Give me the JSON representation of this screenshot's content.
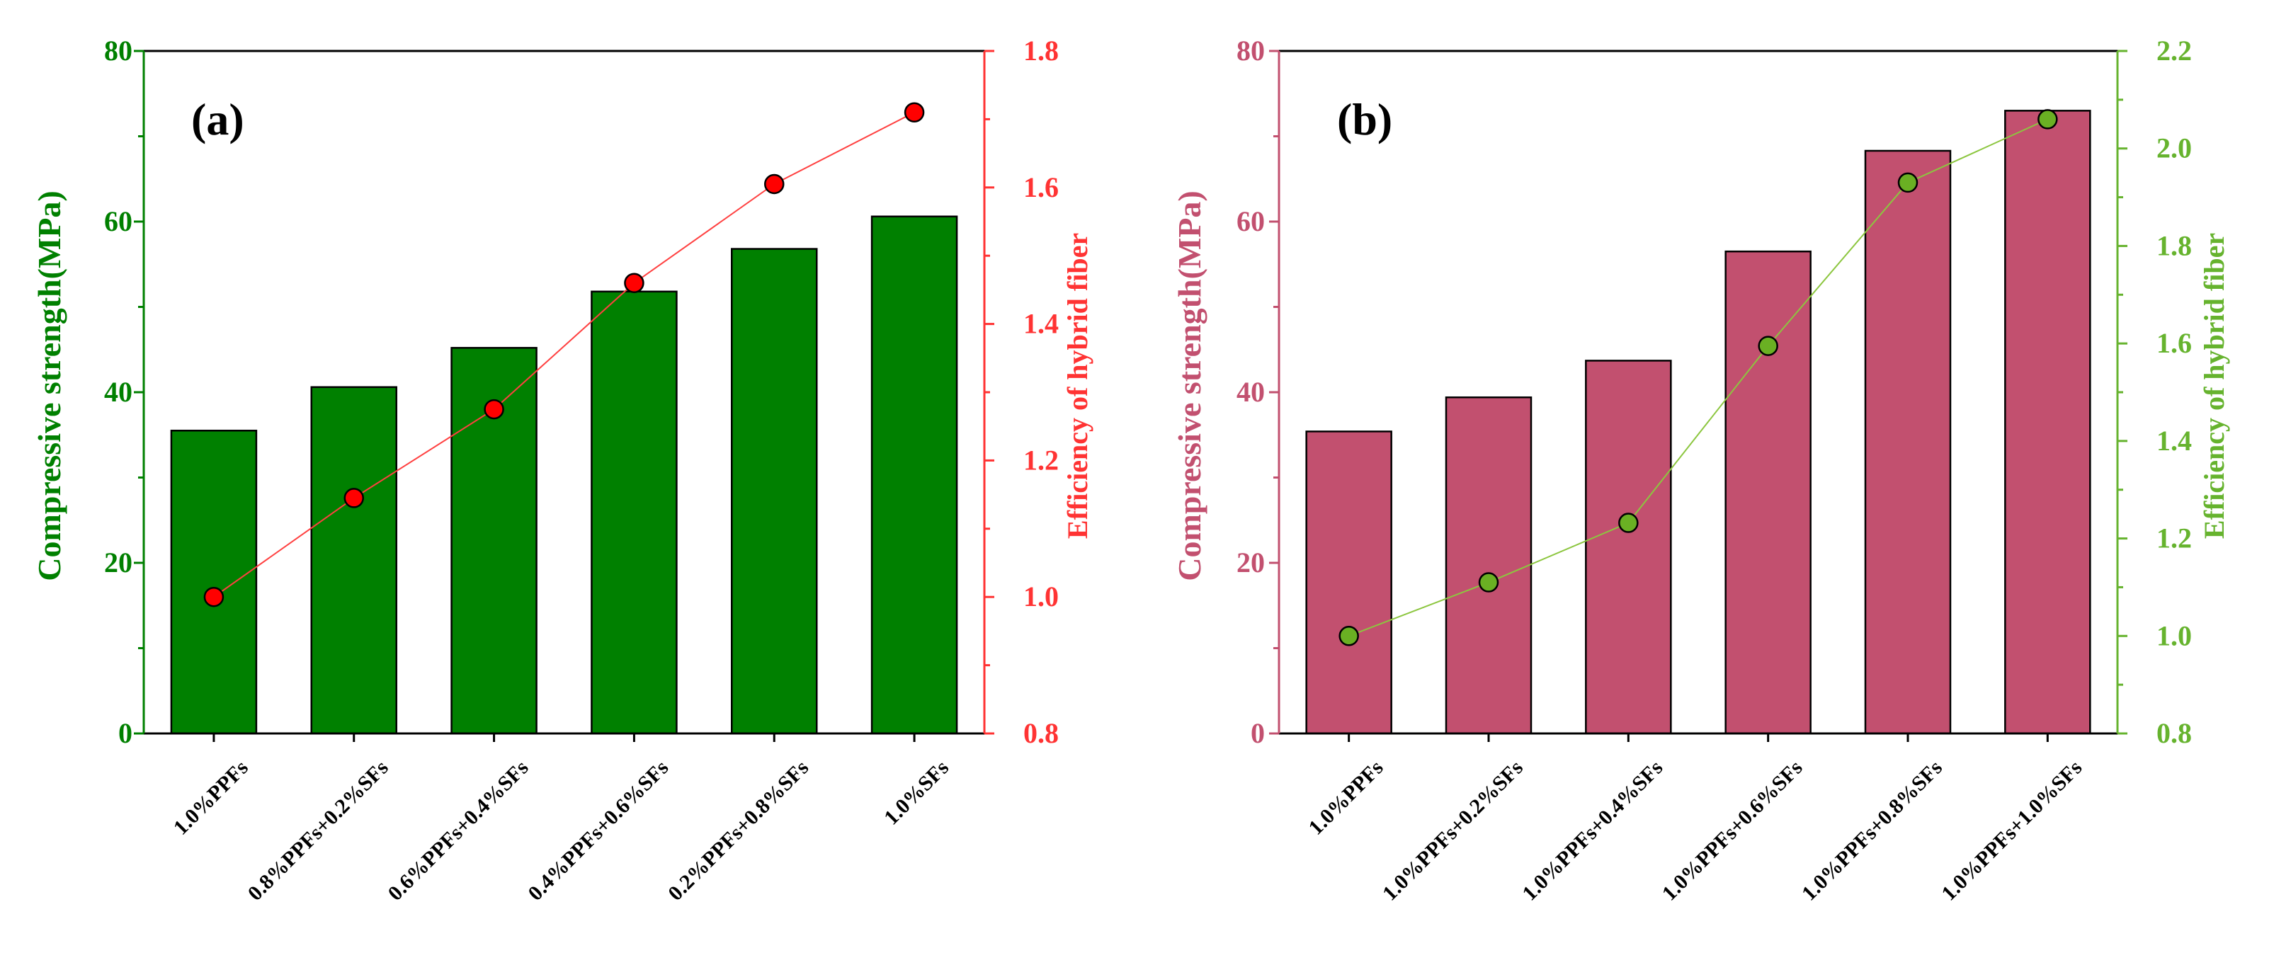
{
  "chart_data": [
    {
      "type": "bar",
      "panel_label": "(a)",
      "categories": [
        "1.0%PPFs",
        "0.8%PPFs+0.2%SFs",
        "0.6%PPFs+0.4%SFs",
        "0.4%PPFs+0.6%SFs",
        "0.2%PPFs+0.8%SFs",
        "1.0%SFs"
      ],
      "series": [
        {
          "name": "Compressive strength(MPa)",
          "kind": "bar",
          "axis": "left",
          "values": [
            35.5,
            40.6,
            45.2,
            51.8,
            56.8,
            60.6
          ]
        },
        {
          "name": "Efficiency of hybrid fiber",
          "kind": "line",
          "axis": "right",
          "values": [
            1.0,
            1.145,
            1.275,
            1.46,
            1.605,
            1.71
          ]
        }
      ],
      "ylabel": "Compressive strength(MPa)",
      "ylim": [
        0,
        80
      ],
      "yticks": [
        "0",
        "20",
        "40",
        "60",
        "80"
      ],
      "y2label": "Efficiency of hybrid fiber",
      "y2lim": [
        0.8,
        1.8
      ],
      "y2ticks": [
        "0.8",
        "1.0",
        "1.2",
        "1.4",
        "1.6",
        "1.8"
      ],
      "colors": {
        "bar": "#008000",
        "left_axis": "#008000",
        "line": "#ff4040",
        "marker_fill": "#ff0000",
        "right_axis": "#ff3333"
      }
    },
    {
      "type": "bar",
      "panel_label": "(b)",
      "categories": [
        "1.0%PPFs",
        "1.0%PPFs+0.2%SFs",
        "1.0%PPFs+0.4%SFs",
        "1.0%PPFs+0.6%SFs",
        "1.0%PPFs+0.8%SFs",
        "1.0%PPFs+1.0%SFs"
      ],
      "series": [
        {
          "name": "Compressive strength(MPa)",
          "kind": "bar",
          "axis": "left",
          "values": [
            35.4,
            39.4,
            43.7,
            56.5,
            68.3,
            73.0
          ]
        },
        {
          "name": "Efficiency of hybrid fiber",
          "kind": "line",
          "axis": "right",
          "values": [
            1.0,
            1.11,
            1.232,
            1.595,
            1.93,
            2.06
          ]
        }
      ],
      "ylabel": "Compressive strength(MPa)",
      "ylim": [
        0,
        80
      ],
      "yticks": [
        "0",
        "20",
        "40",
        "60",
        "80"
      ],
      "y2label": "Efficiency of hybrid fiber",
      "y2lim": [
        0.8,
        2.2
      ],
      "y2ticks": [
        "0.8",
        "1.0",
        "1.2",
        "1.4",
        "1.6",
        "1.8",
        "2.0",
        "2.2"
      ],
      "colors": {
        "bar": "#c2506f",
        "left_axis": "#c2506f",
        "line": "#8cc63f",
        "marker_fill": "#6ab023",
        "right_axis": "#66b32e"
      }
    }
  ]
}
